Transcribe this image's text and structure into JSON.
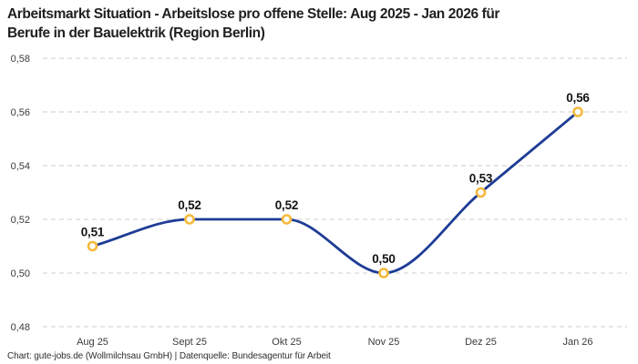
{
  "header": {
    "title_line1": "Arbeitsmarkt Situation - Arbeitslose pro offene Stelle: Aug 2025 - Jan 2026 für",
    "title_line2": "Berufe in der Bauelektrik (Region Berlin)"
  },
  "footer": {
    "attribution": "Chart: gute-jobs.de (Wollmilchsau GmbH) | Datenquelle: Bundesagentur für Arbeit"
  },
  "chart_data": {
    "type": "line",
    "title": "Arbeitsmarkt Situation - Arbeitslose pro offene Stelle: Aug 2025 - Jan 2026 für Berufe in der Bauelektrik (Region Berlin)",
    "categories": [
      "Aug 25",
      "Sept 25",
      "Okt 25",
      "Nov 25",
      "Dez 25",
      "Jan 26"
    ],
    "values": [
      0.51,
      0.52,
      0.52,
      0.5,
      0.53,
      0.56
    ],
    "point_labels": [
      "0,51",
      "0,52",
      "0,52",
      "0,50",
      "0,53",
      "0,56"
    ],
    "yticks": [
      0.48,
      0.5,
      0.52,
      0.54,
      0.56,
      0.58
    ],
    "ytick_labels": [
      "0,48",
      "0,50",
      "0,52",
      "0,54",
      "0,56",
      "0,58"
    ],
    "ylim": [
      0.48,
      0.58
    ],
    "xlabel": "",
    "ylabel": "",
    "grid": "dashed-horizontal",
    "legend": "none",
    "curve": "smooth-monotone",
    "colors": {
      "line": "#1e3c96",
      "marker_ring": "#f5b93c",
      "marker_fill": "#ffffff",
      "gridline": "#cdcdcd",
      "label_text": "#141414",
      "tick_text": "#3a3a3a"
    }
  }
}
